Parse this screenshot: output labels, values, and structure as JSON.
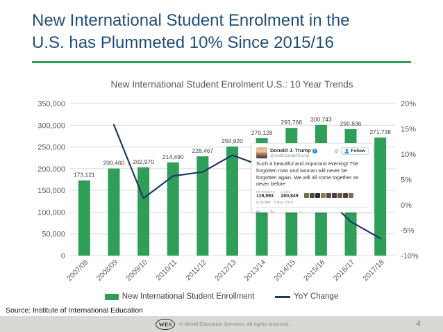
{
  "slide": {
    "title_line1": "New International Student Enrolment in the",
    "title_line2": "U.S. has Plummeted 10% Since 2015/16",
    "source": "Source: Institute of International Education",
    "footer_logo": "WES",
    "footer_copyright": "© World Education Services. All rights reserved.",
    "page_number": "4"
  },
  "chart_data": {
    "type": "bar",
    "title": "New International Student Enrolment U.S.: 10 Year Trends",
    "categories": [
      "2007/08",
      "2008/09",
      "2009/10",
      "2010/11",
      "2011/12",
      "2012/13",
      "2013/14",
      "2014/15",
      "2015/16",
      "2016/17",
      "2017/18"
    ],
    "series": [
      {
        "name": "New International Student Enrollment",
        "type": "bar",
        "axis": "left",
        "values": [
          173121,
          200460,
          202970,
          214490,
          228467,
          250920,
          270128,
          293766,
          300743,
          290836,
          271738
        ]
      },
      {
        "name": "YoY Change",
        "type": "line",
        "axis": "right",
        "unit": "%",
        "values": [
          null,
          15.8,
          1.3,
          5.7,
          6.5,
          9.8,
          7.7,
          8.8,
          2.4,
          -3.3,
          -6.6
        ]
      }
    ],
    "bar_labels": [
      "173,121",
      "200,460",
      "202,970",
      "214,490",
      "228,467",
      "250,920",
      "270,128",
      "293,766",
      "300,743",
      "290,836",
      "271,738"
    ],
    "left_axis": {
      "min": 0,
      "max": 350000,
      "tick_labels": [
        "350,000",
        "300,000",
        "250,000",
        "200,000",
        "150,000",
        "100,000",
        "50,000",
        "0"
      ]
    },
    "right_axis": {
      "min": -10,
      "max": 20,
      "tick_labels": [
        "20%",
        "15%",
        "10%",
        "5%",
        "0%",
        "-5%",
        "-10%"
      ]
    },
    "grid": true,
    "legend_position": "bottom"
  },
  "tweet": {
    "name": "Donald J. Trump",
    "verified_glyph": "✓",
    "handle": "@realDonaldTrump",
    "follow_label": "Follow",
    "text": "Such a beautiful and important evening! The forgotten man and woman will never be forgotten again. We will all come together as never before",
    "retweets_label": "RETWEETS",
    "retweets": "119,893",
    "likes_label": "LIKES",
    "likes": "280,849",
    "timestamp": "4:36 AM - 9 Nov 2016"
  },
  "icons": {
    "gear": "⚙",
    "reply": "↩",
    "retweet": "⇆",
    "like": "♡",
    "more": "⋯"
  },
  "colors": {
    "title_blue": "#1f4e79",
    "bar_green": "#2e9e58",
    "line_navy": "#1f3864",
    "axis_gray": "#595959",
    "label_gray": "#404040",
    "grid_gray": "#d9d9d9",
    "twitter_blue": "#1b95e0",
    "liker_avatars": [
      "#7a6a55",
      "#4a4a4a",
      "#2f2f2f",
      "#8c7b63",
      "#5d4a3a",
      "#3e3e50",
      "#6e5a48",
      "#444444",
      "#7d6c5a"
    ]
  }
}
